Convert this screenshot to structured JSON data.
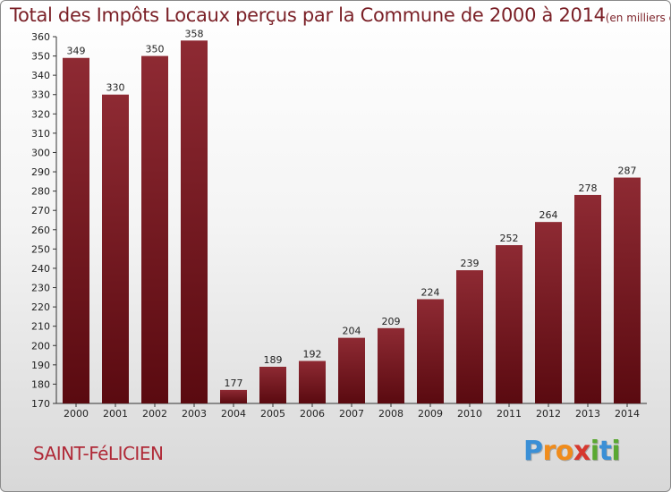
{
  "chart_data": {
    "type": "bar",
    "title": "Total des Impôts Locaux perçus par la Commune de 2000 à 2014",
    "unit_note": "(en milliers d'€)",
    "categories": [
      "2000",
      "2001",
      "2002",
      "2003",
      "2004",
      "2005",
      "2006",
      "2007",
      "2008",
      "2009",
      "2010",
      "2011",
      "2012",
      "2013",
      "2014"
    ],
    "values": [
      349,
      330,
      350,
      358,
      177,
      189,
      192,
      204,
      209,
      224,
      239,
      252,
      264,
      278,
      287
    ],
    "ylim": [
      170,
      360
    ],
    "ytick_step": 10,
    "xlabel": "",
    "ylabel": "",
    "bar_color": "#7e1c25",
    "grid": false
  },
  "commune": "SAINT-FéLICIEN",
  "brand": {
    "letters": [
      "P",
      "r",
      "o",
      "x",
      "i",
      "t",
      "i"
    ],
    "colors": [
      "#3a8fd6",
      "#f08c1c",
      "#f08c1c",
      "#d6382f",
      "#5aa832",
      "#3a8fd6",
      "#5aa832"
    ]
  }
}
